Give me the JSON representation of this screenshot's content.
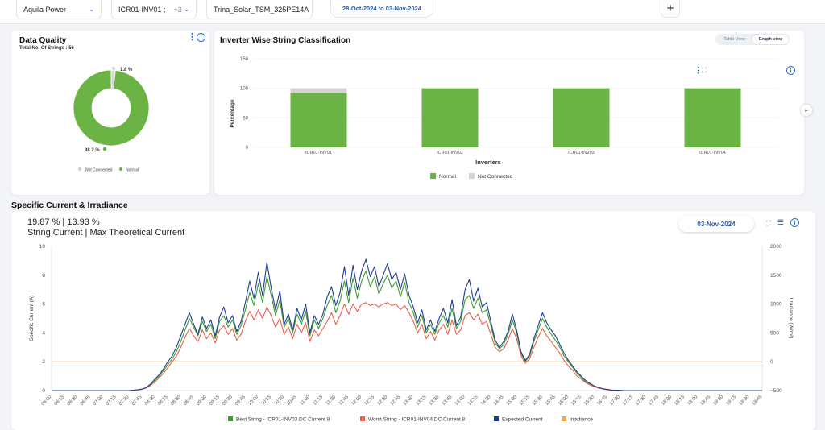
{
  "filters": {
    "plant": "Aquila Power",
    "inverter": "ICR01-INV01 ;",
    "inverter_extra": "+3",
    "module": "Trina_Solar_TSM_325PE14A",
    "date_range": "28-Oct-2024 to 03-Nov-2024",
    "add_label": "+"
  },
  "data_quality": {
    "title": "Data Quality",
    "subtitle": "Total No. Of Strings : 56",
    "not_connected_label": "1.8 %",
    "normal_label": "98.2 %",
    "legend": [
      "Not Connected",
      "Normal"
    ],
    "chart_data": {
      "type": "pie",
      "categories": [
        "Not Connected",
        "Normal"
      ],
      "values": [
        1.8,
        98.2
      ],
      "colors": [
        "#d6d6d6",
        "#6ab344"
      ]
    }
  },
  "inverter_chart": {
    "title": "Inverter Wise String Classification",
    "view_toggle": [
      "Table View",
      "Graph view"
    ],
    "chart_data": {
      "type": "bar",
      "stacked": true,
      "categories": [
        "ICR01-INV01",
        "ICR01-INV02",
        "ICR01-INV03",
        "ICR01-INV04"
      ],
      "series": [
        {
          "name": "Normal",
          "values": [
            92,
            100,
            100,
            100
          ],
          "color": "#6ab344"
        },
        {
          "name": "Not Connected",
          "values": [
            8,
            0,
            0,
            0
          ],
          "color": "#d3d3d3"
        }
      ],
      "xlabel": "Inverters",
      "ylabel": "Percentage",
      "ylim": [
        0,
        150
      ],
      "yticks": [
        0,
        50,
        100,
        150
      ],
      "legend_position": "bottom"
    }
  },
  "specific_current": {
    "section_title": "Specific Current & Irradiance",
    "percent_line": "19.87 % | 13.93 %",
    "percent_caption": "String Current | Max Theoretical Current",
    "date": "03-Nov-2024",
    "chart_data": {
      "type": "line",
      "ylabel_left": "Specific Current (A)",
      "ylabel_right": "Irradiance (W/m²)",
      "ylim_left": [
        0,
        10
      ],
      "ylim_right": [
        -500,
        2000
      ],
      "yticks_left": [
        0,
        2,
        4,
        6,
        8,
        10
      ],
      "yticks_right": [
        -500,
        0,
        500,
        1000,
        1500,
        2000
      ],
      "x_start": "06:00",
      "x_step_minutes": 5,
      "x_tick_every": 3,
      "x_end": "19:55",
      "legend_position": "bottom",
      "series": [
        {
          "name": "Best String - ICR01-INV03.DC Current 8",
          "color": "#3f9b32",
          "values": [
            0,
            0,
            0,
            0,
            0,
            0,
            0,
            0,
            0,
            0,
            0,
            0,
            0,
            0,
            0,
            0,
            0,
            0,
            0,
            0.02,
            0.05,
            0.1,
            0.2,
            0.4,
            0.7,
            1.0,
            1.4,
            1.8,
            2.2,
            2.7,
            3.4,
            4.2,
            5.0,
            4.4,
            3.8,
            4.8,
            4.1,
            4.6,
            3.6,
            4.8,
            5.2,
            4.4,
            4.9,
            3.9,
            4.5,
            5.6,
            6.8,
            5.9,
            7.4,
            6.1,
            7.9,
            6.6,
            5.2,
            6.3,
            4.4,
            5.0,
            4.0,
            5.3,
            4.6,
            5.5,
            3.8,
            4.9,
            4.3,
            5.0,
            5.9,
            6.6,
            5.4,
            6.2,
            7.6,
            6.1,
            7.8,
            6.4,
            7.6,
            8.3,
            7.2,
            7.9,
            6.7,
            7.4,
            8.0,
            7.1,
            7.6,
            6.5,
            7.5,
            6.1,
            5.4,
            4.4,
            5.2,
            4.0,
            4.6,
            3.9,
            4.7,
            5.2,
            4.4,
            5.7,
            4.3,
            4.8,
            6.3,
            6.6,
            5.7,
            6.4,
            5.4,
            5.6,
            4.5,
            3.3,
            2.9,
            3.2,
            3.9,
            4.9,
            4.0,
            2.6,
            2.0,
            2.4,
            3.4,
            4.2,
            5.0,
            4.4,
            3.9,
            3.5,
            3.0,
            2.4,
            2.0,
            1.6,
            1.2,
            0.9,
            0.6,
            0.45,
            0.3,
            0.2,
            0.12,
            0.07,
            0.03,
            0.02,
            0.01,
            0,
            0,
            0,
            0,
            0,
            0,
            0,
            0,
            0,
            0,
            0,
            0,
            0,
            0,
            0,
            0,
            0,
            0,
            0,
            0,
            0,
            0,
            0,
            0,
            0,
            0,
            0,
            0,
            0,
            0,
            0,
            0,
            0
          ]
        },
        {
          "name": "Worst String - ICR01-INV04.DC Current 8",
          "color": "#e8604c",
          "values": [
            0,
            0,
            0,
            0,
            0,
            0,
            0,
            0,
            0,
            0,
            0,
            0,
            0,
            0,
            0,
            0,
            0,
            0,
            0,
            0.02,
            0.05,
            0.09,
            0.18,
            0.35,
            0.6,
            0.9,
            1.2,
            1.6,
            2.0,
            2.4,
            3.0,
            3.7,
            4.3,
            3.8,
            3.4,
            4.2,
            3.6,
            4.0,
            3.3,
            4.2,
            4.5,
            3.9,
            4.3,
            3.5,
            3.9,
            4.8,
            5.5,
            4.9,
            5.6,
            5.0,
            5.8,
            5.2,
            4.4,
            5.0,
            3.9,
            4.4,
            3.6,
            4.6,
            4.0,
            4.7,
            3.4,
            4.2,
            3.8,
            4.3,
            4.8,
            5.4,
            4.6,
            5.2,
            6.0,
            5.3,
            6.0,
            5.5,
            6.0,
            6.1,
            5.9,
            6.0,
            5.8,
            6.0,
            6.1,
            5.9,
            6.0,
            5.6,
            5.9,
            5.4,
            4.8,
            4.0,
            4.6,
            3.6,
            4.1,
            3.5,
            4.2,
            4.6,
            3.9,
            4.9,
            3.9,
            4.2,
            5.2,
            5.4,
            4.9,
            5.3,
            4.6,
            4.8,
            3.9,
            3.0,
            2.7,
            2.9,
            3.5,
            4.3,
            3.6,
            2.4,
            1.9,
            2.2,
            3.0,
            3.7,
            4.3,
            3.8,
            3.4,
            3.0,
            2.6,
            2.1,
            1.7,
            1.4,
            1.0,
            0.8,
            0.55,
            0.4,
            0.27,
            0.18,
            0.11,
            0.06,
            0.03,
            0.02,
            0.01,
            0,
            0,
            0,
            0,
            0,
            0,
            0,
            0,
            0,
            0,
            0,
            0,
            0,
            0,
            0,
            0,
            0,
            0,
            0,
            0,
            0,
            0,
            0,
            0,
            0,
            0,
            0,
            0,
            0,
            0,
            0,
            0,
            0
          ]
        },
        {
          "name": "Expected Current",
          "color": "#1f3f8f",
          "values": [
            0,
            0,
            0,
            0,
            0,
            0,
            0,
            0,
            0,
            0,
            0,
            0,
            0,
            0,
            0,
            0,
            0,
            0,
            0,
            0.02,
            0.05,
            0.1,
            0.22,
            0.45,
            0.8,
            1.1,
            1.5,
            2.0,
            2.4,
            3.0,
            3.8,
            4.6,
            5.4,
            4.6,
            3.9,
            5.1,
            4.3,
            4.9,
            3.8,
            5.1,
            5.8,
            4.7,
            5.2,
            4.1,
            4.8,
            6.1,
            7.6,
            6.4,
            8.2,
            6.6,
            8.9,
            7.1,
            5.6,
            6.9,
            4.6,
            5.3,
            4.2,
            5.7,
            4.9,
            6.0,
            4.0,
            5.2,
            4.6,
            5.3,
            6.5,
            7.2,
            5.9,
            6.8,
            8.6,
            6.6,
            8.7,
            7.0,
            8.3,
            9.1,
            7.9,
            8.6,
            7.2,
            8.0,
            8.8,
            7.7,
            8.2,
            7.0,
            8.1,
            6.6,
            5.8,
            4.7,
            5.6,
            4.2,
            4.9,
            4.1,
            5.0,
            5.7,
            4.7,
            6.3,
            4.5,
            5.1,
            7.0,
            7.7,
            6.2,
            7.1,
            5.8,
            6.1,
            4.8,
            3.5,
            3.0,
            3.4,
            4.1,
            5.3,
            4.2,
            2.7,
            2.1,
            2.5,
            3.6,
            4.5,
            5.4,
            4.7,
            4.2,
            3.8,
            3.2,
            2.6,
            2.1,
            1.7,
            1.3,
            1.0,
            0.7,
            0.5,
            0.33,
            0.22,
            0.13,
            0.08,
            0.04,
            0.02,
            0.01,
            0,
            0,
            0,
            0,
            0,
            0,
            0,
            0,
            0,
            0,
            0,
            0,
            0,
            0,
            0,
            0,
            0,
            0,
            0,
            0,
            0,
            0,
            0,
            0,
            0,
            0,
            0,
            0,
            0,
            0,
            0,
            0,
            0
          ]
        },
        {
          "name": "Irradiance",
          "color": "#f5a84a",
          "fill": "#fbd7b0",
          "axis": "right",
          "values": [
            0,
            0,
            0,
            0,
            0,
            0,
            0,
            0,
            0,
            0,
            0,
            0,
            0,
            0,
            0,
            0,
            0,
            0,
            0,
            0,
            0,
            0,
            0,
            0,
            0,
            0,
            0,
            0,
            0,
            0,
            0,
            0,
            0,
            0,
            0,
            0,
            0,
            0,
            0,
            0,
            0,
            0,
            0,
            0,
            0,
            0,
            0,
            0,
            0,
            0,
            0,
            0,
            0,
            0,
            0,
            0,
            0,
            0,
            0,
            0,
            0,
            0,
            0,
            0,
            0,
            0,
            0,
            0,
            0,
            0,
            0,
            0,
            0,
            0,
            0,
            0,
            0,
            0,
            0,
            0,
            0,
            0,
            0,
            0,
            0,
            0,
            0,
            0,
            0,
            0,
            0,
            0,
            0,
            0,
            0,
            0,
            0,
            0,
            0,
            0,
            0,
            0,
            0,
            0,
            0,
            0,
            0,
            0,
            0,
            0,
            0,
            0,
            0,
            0,
            0,
            0,
            0,
            0,
            0,
            0,
            0,
            0,
            0,
            0,
            0,
            0,
            0,
            0,
            0,
            0,
            0,
            0,
            0,
            0,
            0,
            0,
            0,
            0,
            0,
            0,
            0,
            0,
            0,
            0,
            0,
            0,
            0,
            0,
            0,
            0,
            0,
            0,
            0,
            0,
            0,
            0,
            0,
            0,
            0,
            0,
            0,
            0,
            0,
            0,
            0,
            0
          ]
        }
      ]
    }
  },
  "legends": {
    "inverter": [
      "Normal",
      "Not Connected"
    ],
    "specific": [
      "Best String - ICR01-INV03.DC Current 8",
      "Worst String - ICR01-INV04.DC Current 8",
      "Expected Current",
      "Irradiance"
    ]
  }
}
